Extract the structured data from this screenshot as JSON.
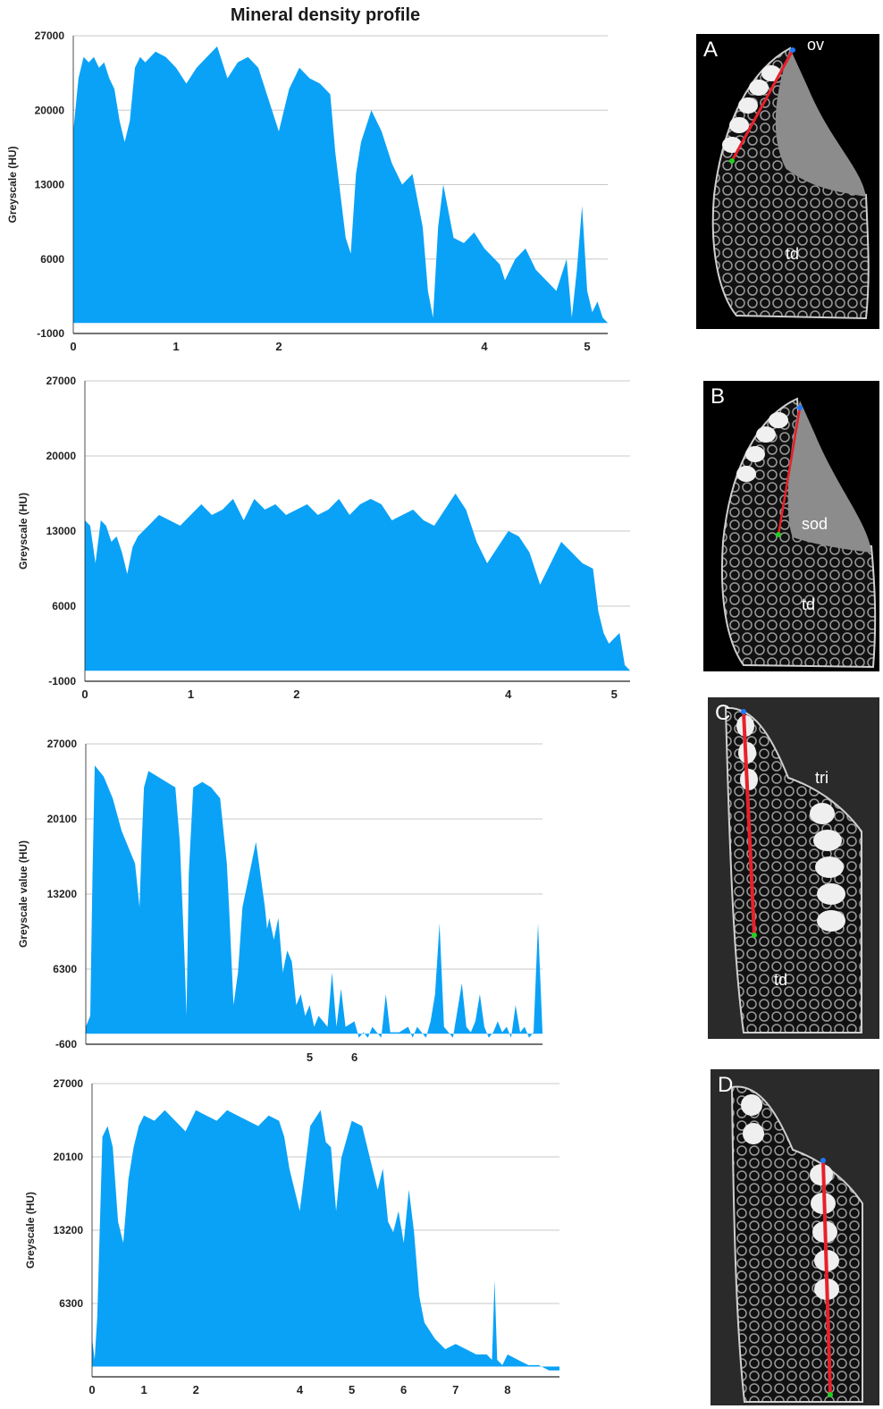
{
  "figure": {
    "title": "Mineral density profile",
    "colors": {
      "area": "#0aa2f7",
      "grid": "#c8c8c8",
      "axis": "#222222",
      "profile_line": "#e8202a",
      "start_marker": "#1e78ff",
      "end_marker": "#20d020"
    }
  },
  "panels": [
    {
      "letter": "A",
      "labels": [
        "ov",
        "td"
      ]
    },
    {
      "letter": "B",
      "labels": [
        "sod",
        "td"
      ]
    },
    {
      "letter": "C",
      "labels": [
        "tri",
        "td"
      ]
    },
    {
      "letter": "D",
      "labels": []
    }
  ],
  "chart_data": [
    {
      "type": "area",
      "title": "Mineral density profile",
      "ylabel": "Greyscale (HU)",
      "xlabel": "",
      "ylim": [
        -1000,
        27000
      ],
      "xlim": [
        0,
        5.2
      ],
      "yticks": [
        27000,
        20000,
        13000,
        6000,
        -1000
      ],
      "xticks": [
        0,
        1,
        2,
        4,
        5
      ],
      "grid": true,
      "x": [
        0,
        0.05,
        0.1,
        0.15,
        0.2,
        0.25,
        0.3,
        0.35,
        0.4,
        0.45,
        0.5,
        0.55,
        0.6,
        0.65,
        0.7,
        0.8,
        0.9,
        1.0,
        1.1,
        1.2,
        1.3,
        1.4,
        1.5,
        1.6,
        1.7,
        1.8,
        1.9,
        2.0,
        2.1,
        2.2,
        2.3,
        2.4,
        2.5,
        2.55,
        2.6,
        2.65,
        2.7,
        2.75,
        2.8,
        2.9,
        3.0,
        3.1,
        3.2,
        3.3,
        3.4,
        3.45,
        3.5,
        3.55,
        3.6,
        3.7,
        3.8,
        3.9,
        4.0,
        4.1,
        4.15,
        4.2,
        4.3,
        4.4,
        4.5,
        4.6,
        4.7,
        4.8,
        4.85,
        4.9,
        4.95,
        5.0,
        5.05,
        5.1,
        5.15,
        5.2
      ],
      "y": [
        18000,
        23000,
        25000,
        24500,
        25000,
        24000,
        24500,
        23000,
        22000,
        19000,
        17000,
        19000,
        24000,
        25000,
        24500,
        25500,
        25000,
        24000,
        22500,
        24000,
        25000,
        26000,
        23000,
        24500,
        25000,
        24000,
        21000,
        18000,
        22000,
        24000,
        23000,
        22500,
        21500,
        16000,
        12000,
        8000,
        6500,
        14000,
        17000,
        20000,
        18000,
        15000,
        13000,
        14000,
        9000,
        3000,
        500,
        9000,
        13000,
        8000,
        7500,
        8500,
        7000,
        6000,
        5500,
        4000,
        6000,
        7000,
        5000,
        4000,
        3000,
        6000,
        500,
        5000,
        11000,
        3000,
        1000,
        2000,
        500,
        0
      ]
    },
    {
      "type": "area",
      "title": "",
      "ylabel": "Greyscale (HU)",
      "xlabel": "",
      "ylim": [
        -1000,
        27000
      ],
      "xlim": [
        0,
        5.15
      ],
      "yticks": [
        27000,
        20000,
        13000,
        6000,
        -1000
      ],
      "xticks": [
        0,
        1,
        2,
        4,
        5
      ],
      "grid": true,
      "x": [
        0,
        0.05,
        0.1,
        0.15,
        0.2,
        0.25,
        0.3,
        0.35,
        0.4,
        0.45,
        0.5,
        0.6,
        0.7,
        0.8,
        0.9,
        1.0,
        1.1,
        1.2,
        1.3,
        1.4,
        1.5,
        1.6,
        1.7,
        1.8,
        1.9,
        2.0,
        2.1,
        2.2,
        2.3,
        2.4,
        2.5,
        2.6,
        2.7,
        2.8,
        2.9,
        3.0,
        3.1,
        3.2,
        3.3,
        3.4,
        3.5,
        3.6,
        3.7,
        3.8,
        3.9,
        4.0,
        4.1,
        4.2,
        4.3,
        4.4,
        4.5,
        4.6,
        4.7,
        4.8,
        4.85,
        4.9,
        4.95,
        5.0,
        5.05,
        5.1,
        5.15
      ],
      "y": [
        14000,
        13500,
        10000,
        14000,
        13500,
        12000,
        12500,
        11000,
        9000,
        11500,
        12500,
        13500,
        14500,
        14000,
        13500,
        14500,
        15500,
        14500,
        15000,
        16000,
        14000,
        16000,
        15000,
        15500,
        14500,
        15000,
        15500,
        14500,
        15000,
        16000,
        14500,
        15500,
        16000,
        15500,
        14000,
        14500,
        15000,
        14000,
        13500,
        15000,
        16500,
        15000,
        12000,
        10000,
        11500,
        13000,
        12500,
        11000,
        8000,
        10000,
        12000,
        11000,
        10000,
        9500,
        5500,
        3500,
        2500,
        3000,
        3500,
        500,
        0
      ]
    },
    {
      "type": "area",
      "title": "",
      "ylabel": "Greyscale value (HU)",
      "xlabel": "",
      "ylim": [
        -600,
        27000
      ],
      "xlim": [
        0,
        10.2
      ],
      "yticks": [
        27000,
        20100,
        13200,
        6300,
        -600
      ],
      "xticks": [
        5,
        6
      ],
      "grid": true,
      "x": [
        0,
        0.1,
        0.15,
        0.2,
        0.4,
        0.6,
        0.8,
        1.0,
        1.1,
        1.2,
        1.25,
        1.3,
        1.4,
        1.6,
        1.8,
        2.0,
        2.1,
        2.2,
        2.25,
        2.3,
        2.4,
        2.6,
        2.8,
        3.0,
        3.15,
        3.2,
        3.3,
        3.4,
        3.5,
        3.6,
        3.8,
        3.9,
        4.0,
        4.05,
        4.1,
        4.2,
        4.3,
        4.4,
        4.5,
        4.6,
        4.7,
        4.8,
        4.9,
        5.0,
        5.1,
        5.2,
        5.3,
        5.4,
        5.5,
        5.6,
        5.7,
        5.8,
        6.0,
        6.1,
        6.2,
        6.3,
        6.4,
        6.5,
        6.6,
        6.7,
        6.8,
        7.0,
        7.2,
        7.3,
        7.4,
        7.5,
        7.6,
        7.7,
        7.8,
        7.9,
        8.0,
        8.2,
        8.4,
        8.5,
        8.6,
        8.7,
        8.8,
        8.9,
        9.0,
        9.1,
        9.2,
        9.3,
        9.4,
        9.5,
        9.6,
        9.7,
        9.8,
        9.9,
        10.0,
        10.1,
        10.2
      ],
      "y": [
        1000,
        2000,
        15000,
        25000,
        24000,
        22000,
        19000,
        17000,
        16000,
        12000,
        18000,
        23000,
        24500,
        24000,
        23500,
        23000,
        18000,
        8000,
        2000,
        15000,
        23000,
        23500,
        23000,
        22000,
        16000,
        12000,
        3000,
        6000,
        12000,
        14000,
        18000,
        15000,
        12000,
        10000,
        11000,
        9000,
        11000,
        6000,
        8000,
        7000,
        3000,
        4000,
        2000,
        3000,
        1000,
        2000,
        1500,
        1000,
        6000,
        1000,
        4500,
        1000,
        1500,
        0,
        500,
        0,
        1000,
        500,
        0,
        4000,
        500,
        500,
        1000,
        0,
        1000,
        500,
        0,
        1500,
        4000,
        10500,
        1000,
        0,
        5000,
        1000,
        500,
        1500,
        4000,
        1000,
        0,
        500,
        1500,
        500,
        1000,
        0,
        3000,
        500,
        1000,
        0,
        500,
        10500,
        500
      ]
    },
    {
      "type": "area",
      "title": "",
      "ylabel": "Greyscale (HU)",
      "xlabel": "",
      "ylim": [
        -600,
        27000
      ],
      "xlim": [
        0,
        9.0
      ],
      "yticks": [
        27000,
        20100,
        13200,
        6300
      ],
      "xticks": [
        0,
        1,
        2,
        4,
        5,
        6,
        7,
        8
      ],
      "grid": true,
      "x": [
        0,
        0.05,
        0.1,
        0.2,
        0.3,
        0.4,
        0.5,
        0.6,
        0.7,
        0.8,
        0.9,
        1.0,
        1.2,
        1.4,
        1.6,
        1.8,
        2.0,
        2.2,
        2.4,
        2.6,
        2.8,
        3.0,
        3.2,
        3.4,
        3.6,
        3.7,
        3.8,
        4.0,
        4.2,
        4.4,
        4.5,
        4.6,
        4.7,
        4.8,
        5.0,
        5.2,
        5.4,
        5.5,
        5.6,
        5.7,
        5.8,
        5.9,
        6.0,
        6.1,
        6.2,
        6.3,
        6.4,
        6.6,
        6.8,
        7.0,
        7.2,
        7.4,
        7.6,
        7.7,
        7.75,
        7.8,
        7.9,
        8.0,
        8.2,
        8.4,
        8.6,
        8.8,
        8.9,
        9.0
      ],
      "y": [
        3000,
        1000,
        5000,
        22000,
        23000,
        21000,
        14000,
        12000,
        18000,
        21000,
        23000,
        24000,
        23500,
        24500,
        23500,
        22500,
        24500,
        24000,
        23500,
        24500,
        24000,
        23500,
        23000,
        24000,
        23500,
        22000,
        19000,
        15000,
        23000,
        24500,
        21500,
        21000,
        15000,
        20000,
        23500,
        23000,
        19000,
        17000,
        19000,
        14000,
        13000,
        15000,
        12000,
        17000,
        13000,
        7000,
        4500,
        3000,
        2000,
        2500,
        2000,
        1500,
        1500,
        1000,
        8500,
        1000,
        500,
        1500,
        1000,
        500,
        500,
        0,
        0,
        0
      ]
    }
  ]
}
